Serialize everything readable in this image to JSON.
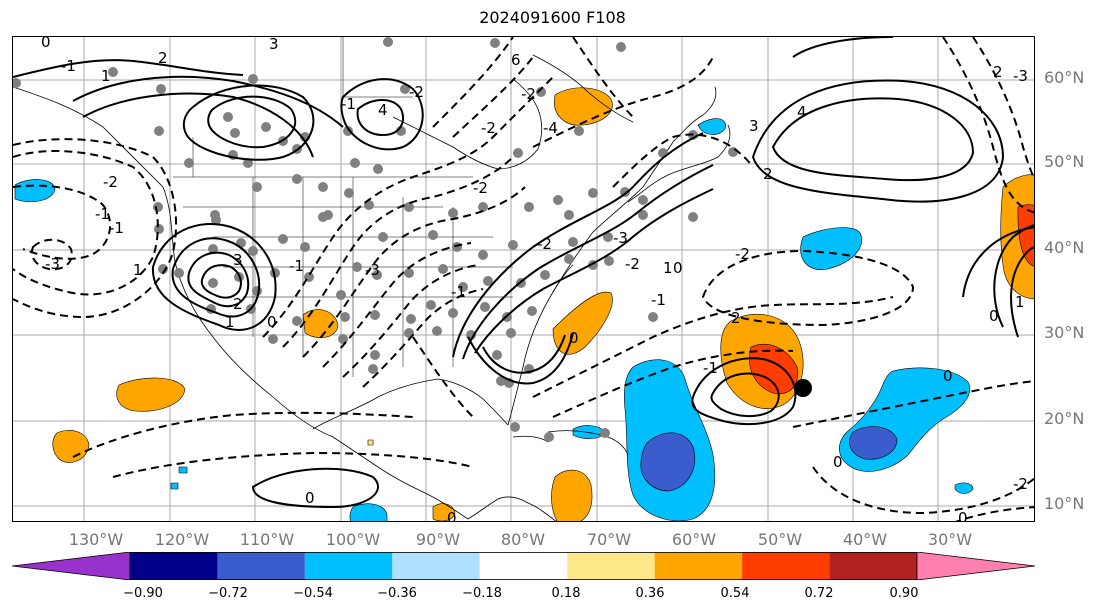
{
  "title": "2024091600 F108",
  "map": {
    "lat_labels": [
      "60°N",
      "50°N",
      "40°N",
      "30°N",
      "20°N",
      "10°N"
    ],
    "lon_labels": [
      "130°W",
      "120°W",
      "110°W",
      "100°W",
      "90°W",
      "80°W",
      "70°W",
      "60°W",
      "50°W",
      "40°W",
      "30°W"
    ],
    "contour_labels": [
      "0",
      "-1",
      "2",
      "3",
      "1",
      "4",
      "-1",
      "-2",
      "6",
      "-2",
      "-4",
      "-2",
      "4",
      "3",
      "2",
      "1",
      "-1",
      "-1",
      "-2",
      "-3",
      "-2",
      "-3",
      "-1",
      "1",
      "2",
      "3",
      "0",
      "-1",
      "-2",
      "0",
      "-2",
      "1",
      "0",
      "-1",
      "-2",
      "-3",
      "2",
      "-1",
      "0",
      "0",
      "0",
      "0",
      "0",
      "-2",
      "-3",
      "2",
      "1",
      "0"
    ],
    "marked_point_color": "#000000",
    "station_dot_color": "#808080"
  },
  "colorbar": {
    "colors": [
      "#9932cc",
      "#00008b",
      "#3a5ccc",
      "#00bfff",
      "#b0e0ff",
      "#ffffff",
      "#ffe88a",
      "#ffa500",
      "#ff3d00",
      "#b22222",
      "#ff80b0"
    ],
    "tick_labels": [
      "−0.90",
      "−0.72",
      "−0.54",
      "−0.36",
      "−0.18",
      "0.18",
      "0.36",
      "0.54",
      "0.72",
      "0.90"
    ]
  }
}
